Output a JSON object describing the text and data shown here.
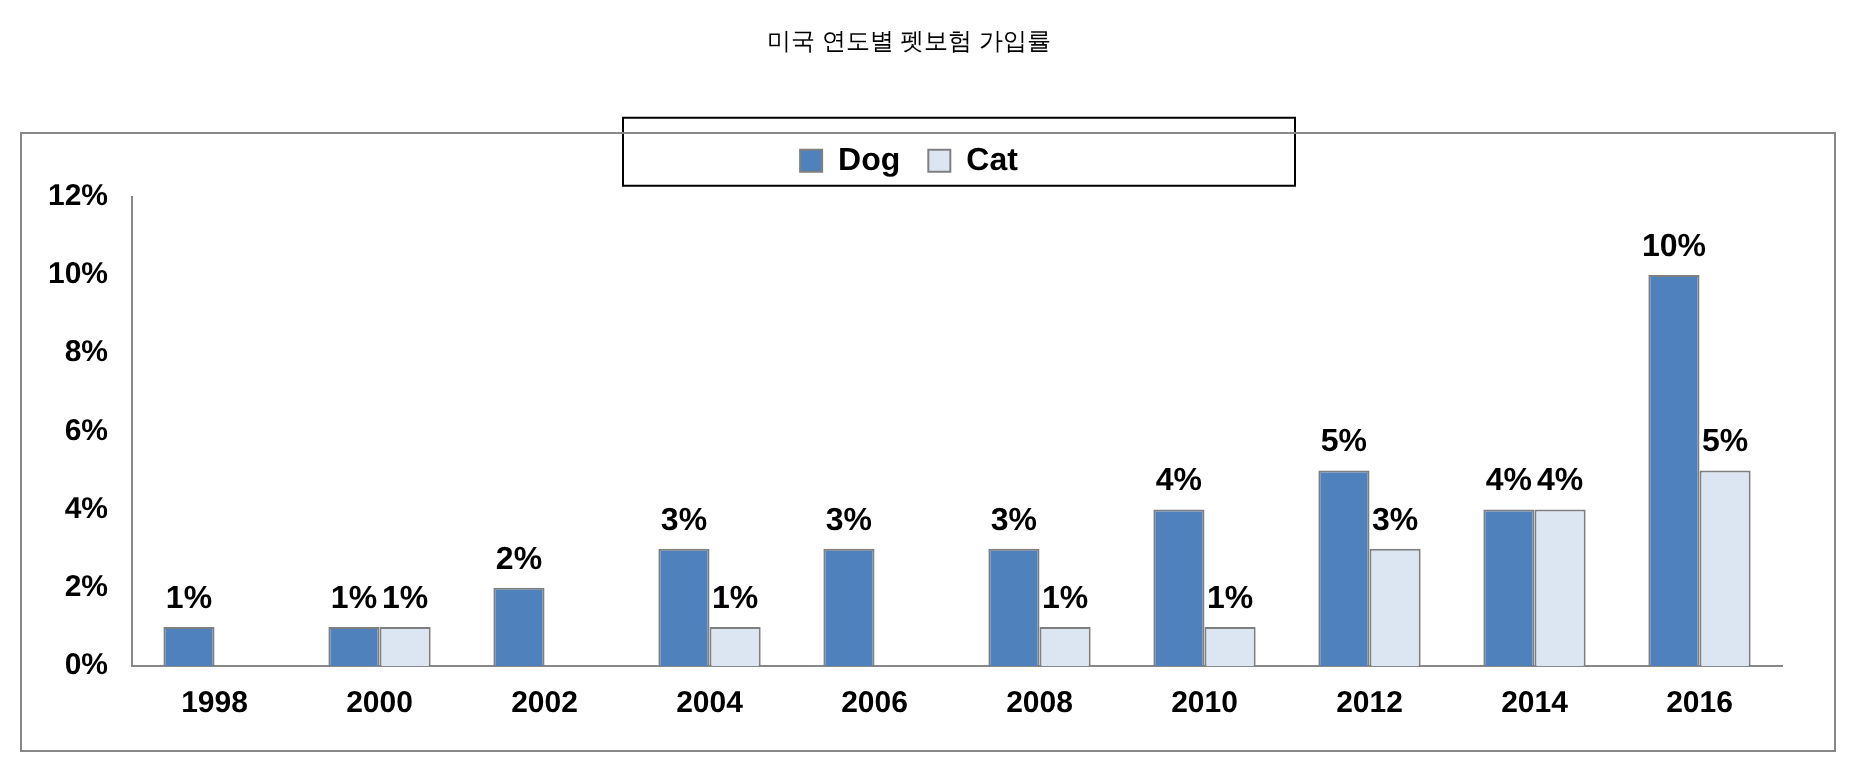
{
  "chart_data": {
    "type": "bar",
    "title": "미국 연도별 펫보험 가입률",
    "categories": [
      "1998",
      "2000",
      "2002",
      "2004",
      "2006",
      "2008",
      "2010",
      "2012",
      "2014",
      "2016"
    ],
    "series": [
      {
        "name": "Dog",
        "color": "#4f81bd",
        "values": [
          1,
          1,
          2,
          3,
          3,
          3,
          4,
          5,
          4,
          10
        ],
        "value_labels": [
          "1%",
          "1%",
          "2%",
          "3%",
          "3%",
          "3%",
          "4%",
          "5%",
          "4%",
          "10%"
        ]
      },
      {
        "name": "Cat",
        "color": "#dce6f2",
        "values": [
          null,
          1,
          null,
          1,
          null,
          1,
          1,
          3,
          4,
          5
        ],
        "value_labels": [
          null,
          "1%",
          null,
          "1%",
          null,
          "1%",
          "1%",
          "3%",
          "4%",
          "5%"
        ]
      }
    ],
    "ylim": [
      0,
      12
    ],
    "yticks": [
      {
        "value": 0,
        "label": "0%"
      },
      {
        "value": 2,
        "label": "2%"
      },
      {
        "value": 4,
        "label": "4%"
      },
      {
        "value": 6,
        "label": "6%"
      },
      {
        "value": 8,
        "label": "8%"
      },
      {
        "value": 10,
        "label": "10%"
      },
      {
        "value": 12,
        "label": "12%"
      }
    ],
    "grid": false,
    "legend": "top"
  }
}
